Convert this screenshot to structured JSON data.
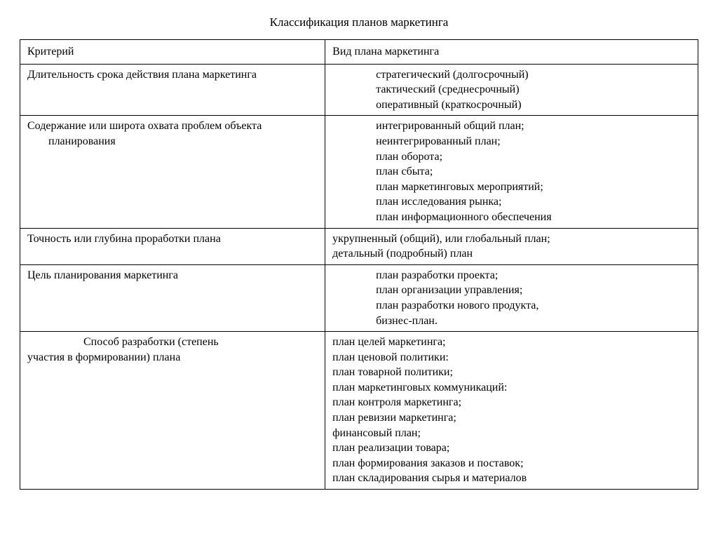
{
  "title": "Классификация планов маркетинга",
  "header": {
    "col1": "Критерий",
    "col2": "Вид плана маркетинга"
  },
  "rows": [
    {
      "criterion": "Длительность срока действия плана маркетинга",
      "items": [
        "стратегический  (долгосрочный)",
        "тактический (среднесрочный)",
        "оперативный (краткосрочный)"
      ]
    },
    {
      "criterion_l1": "Содержание или широта охвата проблем объекта",
      "criterion_l2": "планирования",
      "items": [
        "интегрированный общий план;",
        "неинтегрированный план;",
        "план оборота;",
        "план сбыта;",
        "план маркетинговых мероприятий;",
        "план исследования рынка;",
        "план информационного обеспечения"
      ]
    },
    {
      "criterion": "Точность или глубина проработки плана",
      "items": [
        "укрупненный (общий), или глобальный план;",
        "детальный (подробный) план"
      ]
    },
    {
      "criterion": "Цель планирования маркетинга",
      "items": [
        "план разработки проекта;",
        "план организации управления;",
        "план разработки нового продукта,",
        "бизнес-план."
      ]
    },
    {
      "criterion_l1": "Способ разработки (степень",
      "criterion_l2": "участия в формировании) плана",
      "items": [
        "план целей маркетинга;",
        "план ценовой политики:",
        "план товарной политики;",
        "план маркетинговых коммуникаций:",
        "план контроля маркетинга;",
        "план ревизии маркетинга;",
        "финансовый план;",
        "план реализации товара;",
        "план формирования заказов и поставок;",
        "план складирования сырья и материалов"
      ]
    }
  ]
}
